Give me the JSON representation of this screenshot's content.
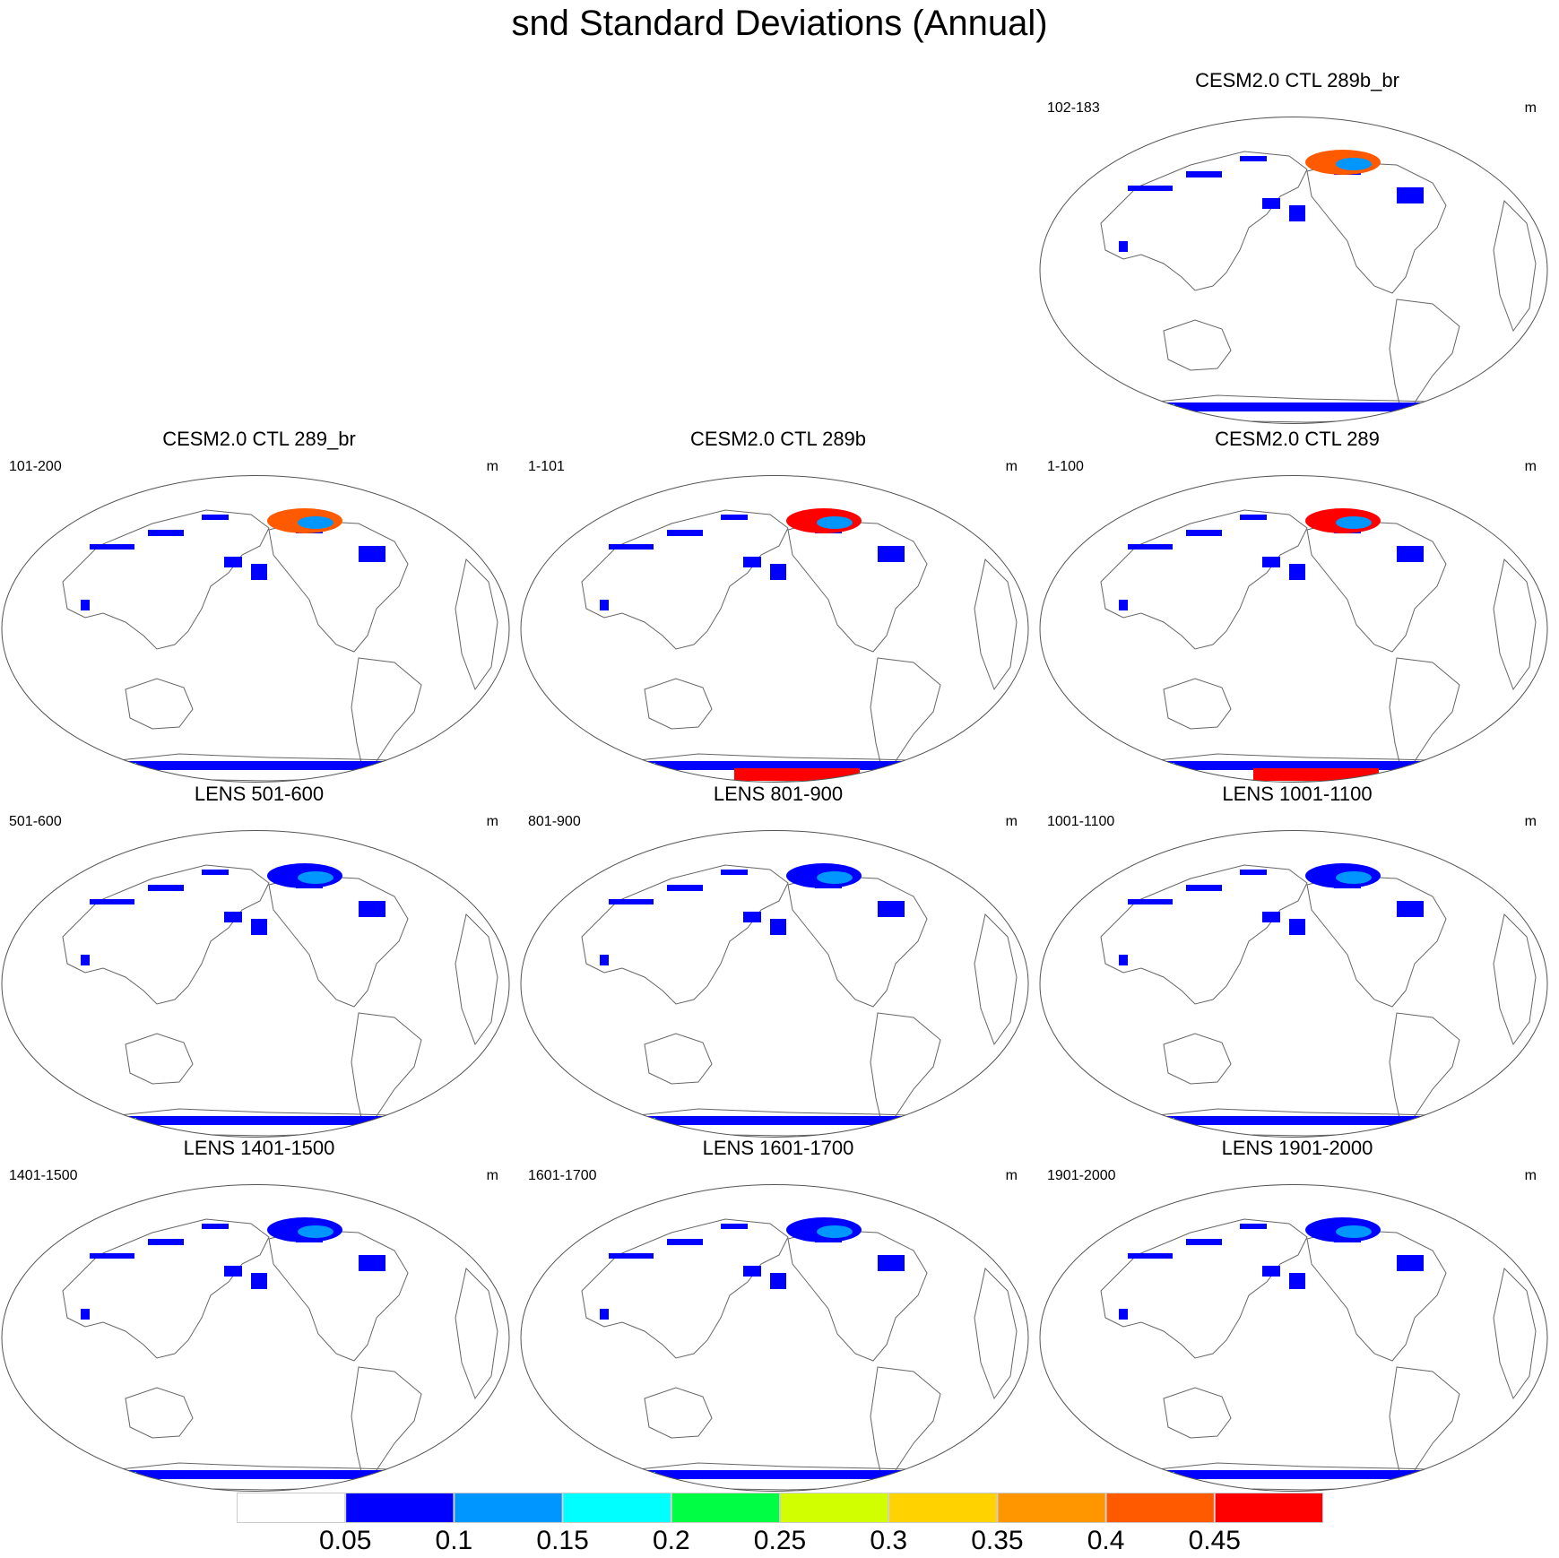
{
  "title": "snd Standard Deviations (Annual)",
  "colors": {
    "coast": "#666666",
    "levels": [
      "#ffffff",
      "#0000ff",
      "#0096ff",
      "#00ffff",
      "#00ff44",
      "#d2ff00",
      "#ffd200",
      "#ff9600",
      "#ff5a00",
      "#ff0000"
    ]
  },
  "panels": [
    {
      "id": "ctl-289b-br",
      "title": "CESM2.0 CTL 289b_br",
      "years": "102-183",
      "units": "m",
      "row": 0,
      "col": 2,
      "antarctic_level": 1,
      "arctic_level": 8
    },
    {
      "id": "ctl-289-br",
      "title": "CESM2.0 CTL 289_br",
      "years": "101-200",
      "units": "m",
      "row": 1,
      "col": 0,
      "antarctic_level": 1,
      "arctic_level": 8
    },
    {
      "id": "ctl-289b",
      "title": "CESM2.0 CTL 289b",
      "years": "1-101",
      "units": "m",
      "row": 1,
      "col": 1,
      "antarctic_level": 9,
      "arctic_level": 9
    },
    {
      "id": "ctl-289",
      "title": "CESM2.0 CTL 289",
      "years": "1-100",
      "units": "m",
      "row": 1,
      "col": 2,
      "antarctic_level": 9,
      "arctic_level": 9
    },
    {
      "id": "lens-501",
      "title": "LENS 501-600",
      "years": "501-600",
      "units": "m",
      "row": 2,
      "col": 0,
      "antarctic_level": 1,
      "arctic_level": 1
    },
    {
      "id": "lens-801",
      "title": "LENS 801-900",
      "years": "801-900",
      "units": "m",
      "row": 2,
      "col": 1,
      "antarctic_level": 1,
      "arctic_level": 1
    },
    {
      "id": "lens-1001",
      "title": "LENS 1001-1100",
      "years": "1001-1100",
      "units": "m",
      "row": 2,
      "col": 2,
      "antarctic_level": 1,
      "arctic_level": 1
    },
    {
      "id": "lens-1401",
      "title": "LENS 1401-1500",
      "years": "1401-1500",
      "units": "m",
      "row": 3,
      "col": 0,
      "antarctic_level": 1,
      "arctic_level": 1
    },
    {
      "id": "lens-1601",
      "title": "LENS 1601-1700",
      "years": "1601-1700",
      "units": "m",
      "row": 3,
      "col": 1,
      "antarctic_level": 1,
      "arctic_level": 1
    },
    {
      "id": "lens-1901",
      "title": "LENS 1901-2000",
      "years": "1901-2000",
      "units": "m",
      "row": 3,
      "col": 2,
      "antarctic_level": 1,
      "arctic_level": 1
    }
  ],
  "colorbar": {
    "labels": [
      "0.05",
      "0.1",
      "0.15",
      "0.2",
      "0.25",
      "0.3",
      "0.35",
      "0.4",
      "0.45"
    ]
  }
}
